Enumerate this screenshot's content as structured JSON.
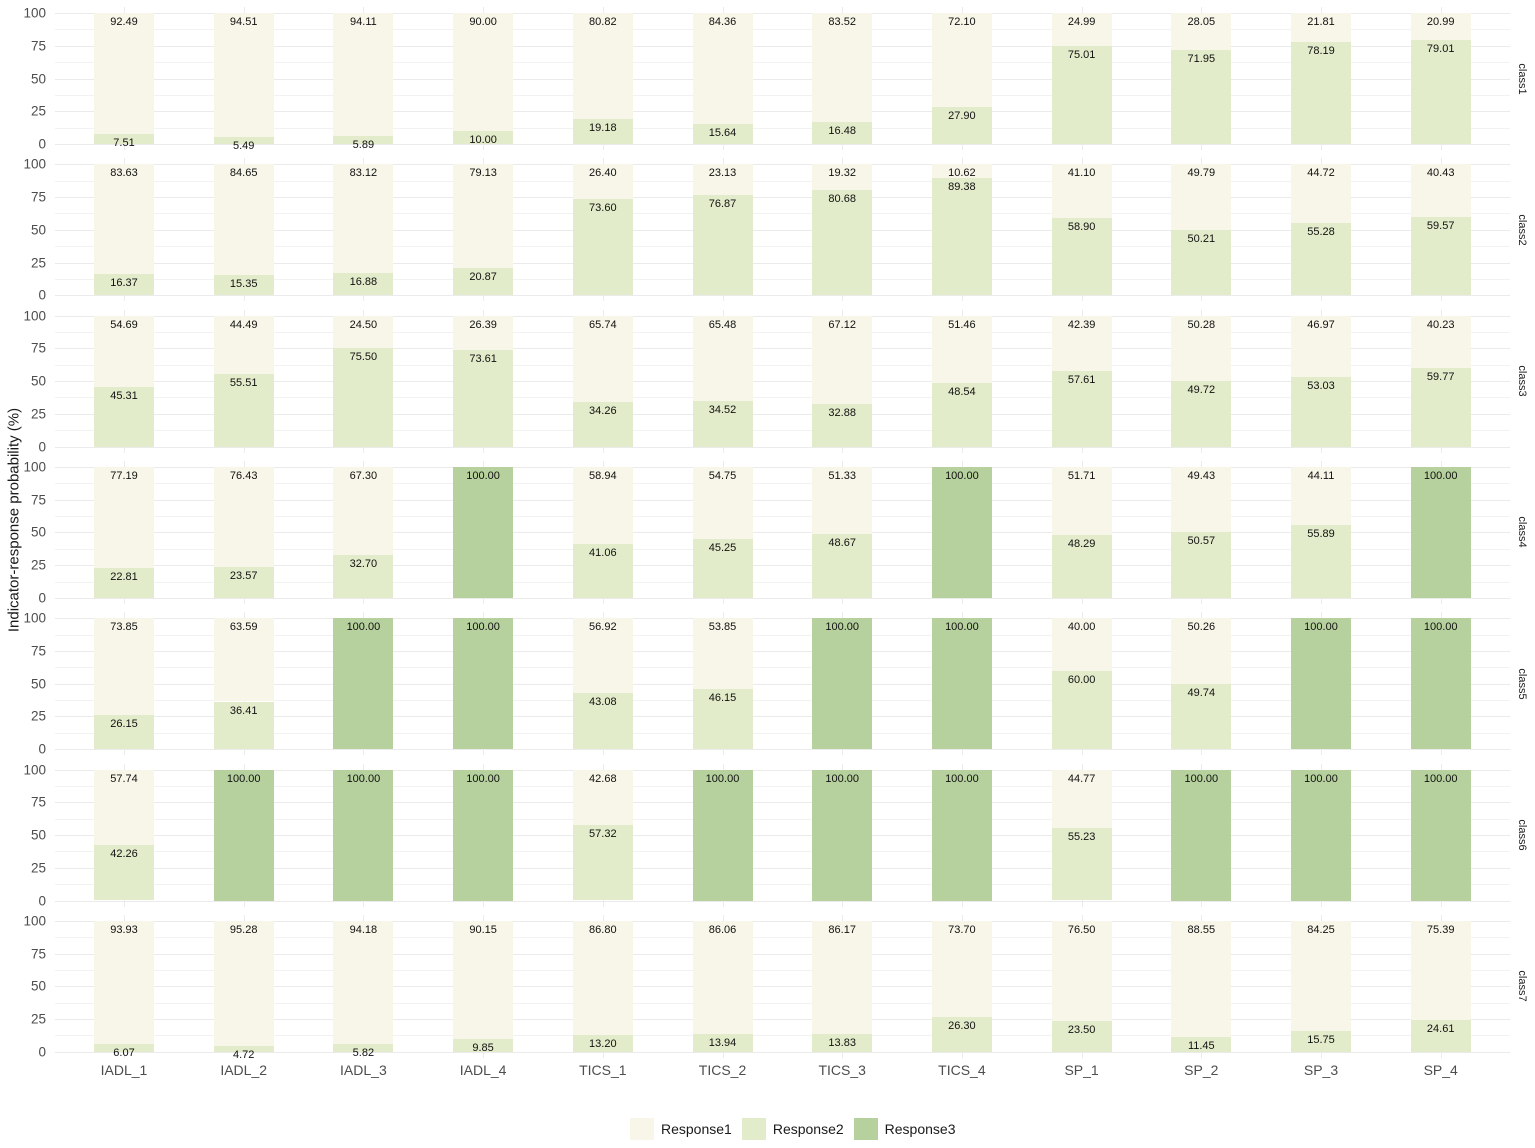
{
  "chart_data": {
    "type": "bar",
    "subtype": "stacked-100-faceted",
    "title": "",
    "xlabel": "",
    "ylabel": "Indicator-response probability (%)",
    "ylim": [
      0,
      100
    ],
    "yticks": [
      "0",
      "25",
      "50",
      "75",
      "100"
    ],
    "grid": true,
    "legend_position": "bottom",
    "categories": [
      "IADL_1",
      "IADL_2",
      "IADL_3",
      "IADL_4",
      "TICS_1",
      "TICS_2",
      "TICS_3",
      "TICS_4",
      "SP_1",
      "SP_2",
      "SP_3",
      "SP_4"
    ],
    "series_names": [
      "Response1",
      "Response2",
      "Response3"
    ],
    "colors": {
      "Response1": "#f7f6e8",
      "Response2": "#e3ecca",
      "Response3": "#b6d19d"
    },
    "facets": [
      {
        "name": "class1",
        "series": [
          {
            "name": "Response1",
            "values": [
              92.49,
              94.51,
              94.11,
              90.0,
              80.82,
              84.36,
              83.52,
              72.1,
              24.99,
              28.05,
              21.81,
              20.99
            ]
          },
          {
            "name": "Response2",
            "values": [
              7.51,
              5.49,
              5.89,
              10.0,
              19.18,
              15.64,
              16.48,
              27.9,
              75.01,
              71.95,
              78.19,
              79.01
            ]
          },
          {
            "name": "Response3",
            "values": [
              null,
              null,
              null,
              null,
              null,
              null,
              null,
              null,
              null,
              null,
              null,
              null
            ]
          }
        ],
        "labels": [
          [
            "92.49",
            "94.51",
            "94.11",
            "90.00",
            "80.82",
            "84.36",
            "83.52",
            "72.10",
            "24.99",
            "28.05",
            "21.81",
            "20.99"
          ],
          [
            "7.51",
            "5.49",
            "5.89",
            "10.00",
            "19.18",
            "15.64",
            "16.48",
            "27.90",
            "75.01",
            "71.95",
            "78.19",
            "79.01"
          ],
          [
            "",
            "",
            "",
            "",
            "",
            "",
            "",
            "",
            "",
            "",
            "",
            ""
          ]
        ]
      },
      {
        "name": "class2",
        "series": [
          {
            "name": "Response1",
            "values": [
              83.63,
              84.65,
              83.12,
              79.13,
              26.4,
              23.13,
              19.32,
              10.62,
              41.1,
              49.79,
              44.72,
              40.43
            ]
          },
          {
            "name": "Response2",
            "values": [
              16.37,
              15.35,
              16.88,
              20.87,
              73.6,
              76.87,
              80.68,
              89.38,
              58.9,
              50.21,
              55.28,
              59.57
            ]
          },
          {
            "name": "Response3",
            "values": [
              null,
              null,
              null,
              null,
              null,
              null,
              null,
              null,
              null,
              null,
              null,
              null
            ]
          }
        ],
        "labels": [
          [
            "83.63",
            "84.65",
            "83.12",
            "79.13",
            "26.40",
            "23.13",
            "19.32",
            "10.62",
            "41.10",
            "49.79",
            "44.72",
            "40.43"
          ],
          [
            "16.37",
            "15.35",
            "16.88",
            "20.87",
            "73.60",
            "76.87",
            "80.68",
            "89.38",
            "58.90",
            "50.21",
            "55.28",
            "59.57"
          ],
          [
            "",
            "",
            "",
            "",
            "",
            "",
            "",
            "",
            "",
            "",
            "",
            ""
          ]
        ]
      },
      {
        "name": "class3",
        "series": [
          {
            "name": "Response1",
            "values": [
              54.69,
              44.49,
              24.5,
              26.39,
              65.74,
              65.48,
              67.12,
              51.46,
              42.39,
              50.28,
              46.97,
              40.23
            ]
          },
          {
            "name": "Response2",
            "values": [
              45.31,
              55.51,
              75.5,
              73.61,
              34.26,
              34.52,
              32.88,
              48.54,
              57.61,
              49.72,
              53.03,
              59.77
            ]
          },
          {
            "name": "Response3",
            "values": [
              null,
              null,
              null,
              null,
              null,
              null,
              null,
              null,
              null,
              null,
              null,
              null
            ]
          }
        ],
        "labels": [
          [
            "54.69",
            "44.49",
            "24.50",
            "26.39",
            "65.74",
            "65.48",
            "67.12",
            "51.46",
            "42.39",
            "50.28",
            "46.97",
            "40.23"
          ],
          [
            "45.31",
            "55.51",
            "75.50",
            "73.61",
            "34.26",
            "34.52",
            "32.88",
            "48.54",
            "57.61",
            "49.72",
            "53.03",
            "59.77"
          ],
          [
            "",
            "",
            "",
            "",
            "",
            "",
            "",
            "",
            "",
            "",
            "",
            ""
          ]
        ]
      },
      {
        "name": "class4",
        "series": [
          {
            "name": "Response1",
            "values": [
              77.19,
              76.43,
              67.3,
              null,
              58.94,
              54.75,
              51.33,
              null,
              51.71,
              49.43,
              44.11,
              null
            ]
          },
          {
            "name": "Response2",
            "values": [
              22.81,
              23.57,
              32.7,
              null,
              41.06,
              45.25,
              48.67,
              null,
              48.29,
              50.57,
              55.89,
              null
            ]
          },
          {
            "name": "Response3",
            "values": [
              null,
              null,
              null,
              100.0,
              null,
              null,
              null,
              100.0,
              null,
              null,
              null,
              100.0
            ]
          }
        ],
        "labels": [
          [
            "77.19",
            "76.43",
            "67.30",
            "",
            "58.94",
            "54.75",
            "51.33",
            "",
            "51.71",
            "49.43",
            "44.11",
            ""
          ],
          [
            "22.81",
            "23.57",
            "32.70",
            "",
            "41.06",
            "45.25",
            "48.67",
            "",
            "48.29",
            "50.57",
            "55.89",
            ""
          ],
          [
            "",
            "",
            "",
            "100.00",
            "",
            "",
            "",
            "100.00",
            "",
            "",
            "",
            "100.00"
          ]
        ]
      },
      {
        "name": "class5",
        "series": [
          {
            "name": "Response1",
            "values": [
              73.85,
              63.59,
              null,
              null,
              56.92,
              53.85,
              null,
              null,
              40.0,
              50.26,
              null,
              null
            ]
          },
          {
            "name": "Response2",
            "values": [
              26.15,
              36.41,
              null,
              null,
              43.08,
              46.15,
              null,
              null,
              60.0,
              49.74,
              null,
              null
            ]
          },
          {
            "name": "Response3",
            "values": [
              null,
              null,
              100.0,
              100.0,
              null,
              null,
              100.0,
              100.0,
              null,
              null,
              100.0,
              100.0
            ]
          }
        ],
        "labels": [
          [
            "73.85",
            "63.59",
            "",
            "",
            "56.92",
            "53.85",
            "",
            "",
            "40.00",
            "50.26",
            "",
            ""
          ],
          [
            "26.15",
            "36.41",
            "",
            "",
            "43.08",
            "46.15",
            "",
            "",
            "60.00",
            "49.74",
            "",
            ""
          ],
          [
            "",
            "",
            "100.00",
            "100.00",
            "",
            "",
            "100.00",
            "100.00",
            "",
            "",
            "100.00",
            "100.00"
          ]
        ]
      },
      {
        "name": "class6",
        "series": [
          {
            "name": "Response1",
            "values": [
              57.74,
              null,
              null,
              null,
              42.68,
              null,
              null,
              null,
              44.77,
              null,
              null,
              null
            ]
          },
          {
            "name": "Response2",
            "values": [
              42.26,
              null,
              null,
              null,
              57.32,
              null,
              null,
              null,
              55.23,
              null,
              null,
              null
            ]
          },
          {
            "name": "Response3",
            "values": [
              null,
              100.0,
              100.0,
              100.0,
              null,
              100.0,
              100.0,
              100.0,
              null,
              100.0,
              100.0,
              100.0
            ]
          }
        ],
        "labels": [
          [
            "57.74",
            "",
            "",
            "",
            "42.68",
            "",
            "",
            "",
            "44.77",
            "",
            "",
            ""
          ],
          [
            "42.26",
            "",
            "",
            "",
            "57.32",
            "",
            "",
            "",
            "55.23",
            "",
            "",
            ""
          ],
          [
            "",
            "100.00",
            "100.00",
            "100.00",
            "",
            "100.00",
            "100.00",
            "100.00",
            "",
            "100.00",
            "100.00",
            "100.00"
          ]
        ]
      },
      {
        "name": "class7",
        "series": [
          {
            "name": "Response1",
            "values": [
              93.93,
              95.28,
              94.18,
              90.15,
              86.8,
              86.06,
              86.17,
              73.7,
              76.5,
              88.55,
              84.25,
              75.39
            ]
          },
          {
            "name": "Response2",
            "values": [
              6.07,
              4.72,
              5.82,
              9.85,
              13.2,
              13.94,
              13.83,
              26.3,
              23.5,
              11.45,
              15.75,
              24.61
            ]
          },
          {
            "name": "Response3",
            "values": [
              null,
              null,
              null,
              null,
              null,
              null,
              null,
              null,
              null,
              null,
              null,
              null
            ]
          }
        ],
        "labels": [
          [
            "93.93",
            "95.28",
            "94.18",
            "90.15",
            "86.80",
            "86.06",
            "86.17",
            "73.70",
            "76.50",
            "88.55",
            "84.25",
            "75.39"
          ],
          [
            "6.07",
            "4.72",
            "5.82",
            "9.85",
            "13.20",
            "13.94",
            "13.83",
            "26.30",
            "23.50",
            "11.45",
            "15.75",
            "24.61"
          ],
          [
            "",
            "",
            "",
            "",
            "",
            "",
            "",
            "",
            "",
            "",
            "",
            ""
          ]
        ]
      }
    ]
  },
  "legend": {
    "items": [
      {
        "label": "Response1",
        "color": "#f7f6e8"
      },
      {
        "label": "Response2",
        "color": "#e3ecca"
      },
      {
        "label": "Response3",
        "color": "#b6d19d"
      }
    ]
  }
}
